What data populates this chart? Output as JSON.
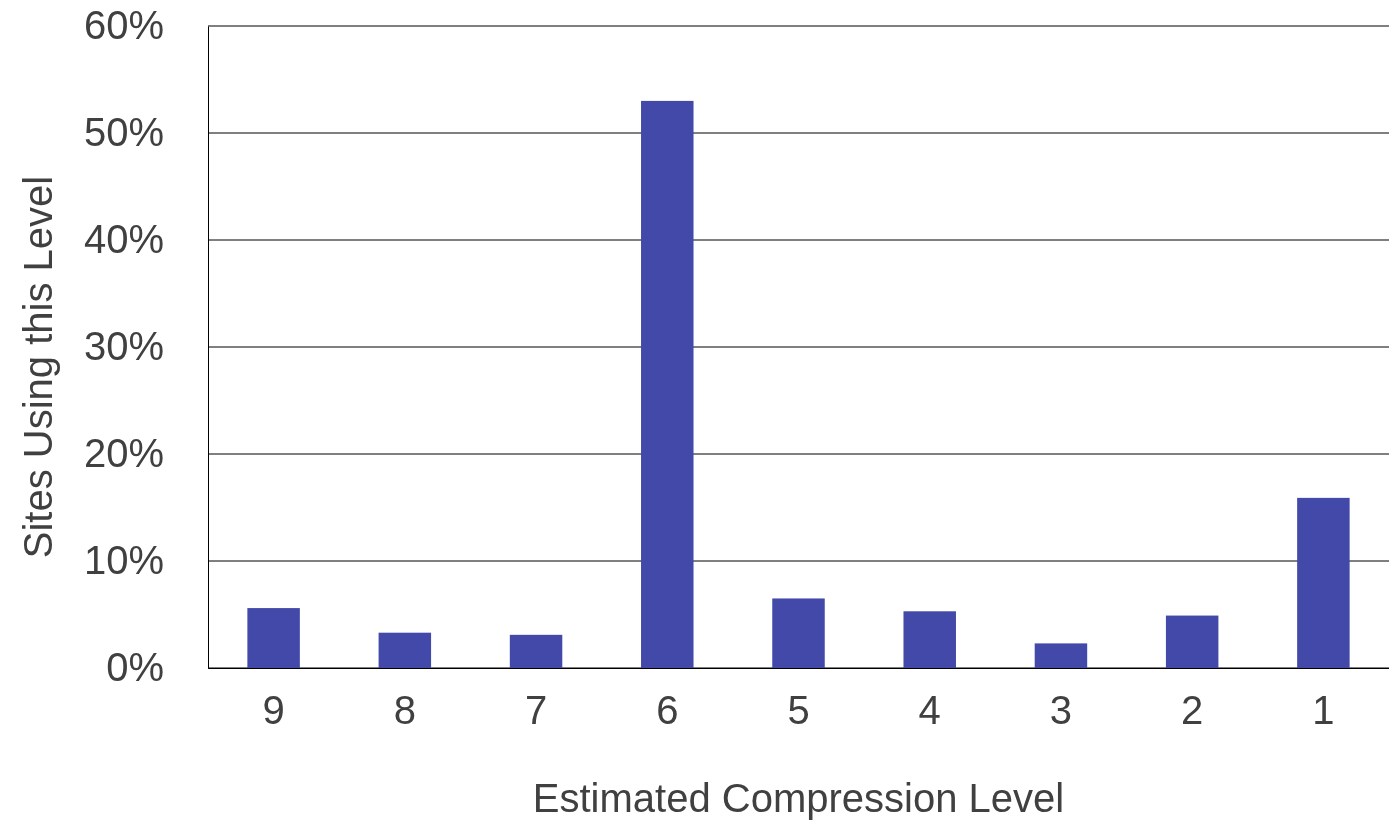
{
  "chart_data": {
    "type": "bar",
    "xlabel": "Estimated Compression Level",
    "ylabel": "Sites Using this Level",
    "categories": [
      "9",
      "8",
      "7",
      "6",
      "5",
      "4",
      "3",
      "2",
      "1"
    ],
    "values": [
      5.6,
      3.3,
      3.1,
      53.0,
      6.5,
      5.3,
      2.3,
      4.9,
      15.9
    ],
    "color": "#4349a8",
    "ylim": [
      0,
      60
    ],
    "yticks": [
      {
        "value": 0,
        "label": "0%"
      },
      {
        "value": 10,
        "label": "10%"
      },
      {
        "value": 20,
        "label": "20%"
      },
      {
        "value": 30,
        "label": "30%"
      },
      {
        "value": 40,
        "label": "40%"
      },
      {
        "value": 50,
        "label": "50%"
      },
      {
        "value": 60,
        "label": "60%"
      }
    ],
    "grid": "y"
  }
}
